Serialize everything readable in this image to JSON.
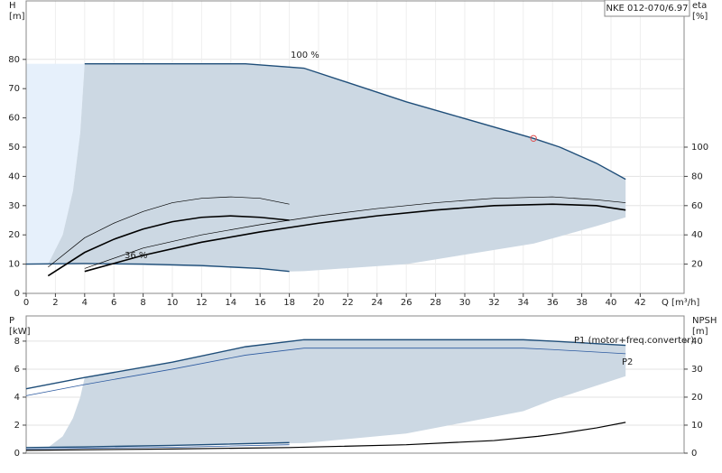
{
  "chart_data": [
    {
      "type": "line",
      "title": "NKE 012-070/6.97",
      "ylabel": "H",
      "yunit": "[m]",
      "y2label": "eta",
      "y2unit": "[%]",
      "xlabel": "Q [m³/h]",
      "xlim": [
        0,
        45
      ],
      "xticks": [
        0,
        2,
        4,
        6,
        8,
        10,
        12,
        14,
        16,
        18,
        20,
        22,
        24,
        26,
        28,
        30,
        32,
        34,
        36,
        38,
        40,
        42
      ],
      "ylim": [
        0,
        100
      ],
      "yticks": [
        0,
        10,
        20,
        30,
        40,
        50,
        60,
        70,
        80
      ],
      "y2lim": [
        0,
        200
      ],
      "y2ticks": [
        20,
        40,
        60,
        80,
        100
      ],
      "grid": true,
      "areas": [
        {
          "color": "#e6f0fb",
          "x": [
            0,
            1.5,
            2.5,
            3.2,
            3.7,
            4
          ],
          "upper": [
            78.5,
            78.5,
            78.5,
            78.5,
            78.5,
            78.5
          ],
          "lower": [
            10,
            10,
            20,
            35,
            55,
            78.5
          ]
        },
        {
          "color": "#ccd8e3",
          "x": [
            1.5,
            2.5,
            3.2,
            3.7,
            4,
            15,
            18,
            19,
            26,
            34.7,
            36.5,
            39,
            41
          ],
          "upper": [
            10,
            20,
            35,
            55,
            78.5,
            78.5,
            77.6,
            77,
            65.5,
            53,
            50,
            44.5,
            39
          ],
          "lower": [
            10,
            10.2,
            10.2,
            10.2,
            10.2,
            8.7,
            7.5,
            7.6,
            10,
            17,
            19.5,
            23,
            26
          ]
        }
      ],
      "series": [
        {
          "name": "100 %",
          "color": "#1f4e79",
          "width": 1.4,
          "x": [
            4,
            15,
            19,
            26,
            34.7,
            36.5,
            39,
            41
          ],
          "values": [
            78.5,
            78.5,
            77,
            65.5,
            53,
            50,
            44.5,
            39
          ]
        },
        {
          "name": "36 %",
          "color": "#1f4e79",
          "width": 1.4,
          "x": [
            0,
            4,
            8,
            12,
            16,
            18
          ],
          "values": [
            10,
            10.2,
            10,
            9.5,
            8.5,
            7.5
          ]
        },
        {
          "color": "#000000",
          "width": 0.7,
          "axis": "y2",
          "x": [
            1.5,
            4,
            6,
            8,
            10,
            12,
            14,
            16,
            18
          ],
          "values": [
            18,
            38,
            48,
            56,
            62,
            65,
            66,
            65,
            61
          ]
        },
        {
          "color": "#000000",
          "width": 1.6,
          "axis": "y2",
          "x": [
            1.5,
            4,
            6,
            8,
            10,
            12,
            14,
            16,
            18
          ],
          "values": [
            12,
            28,
            37,
            44,
            49,
            52,
            53,
            52,
            50
          ]
        },
        {
          "color": "#000000",
          "width": 0.7,
          "axis": "y2",
          "x": [
            4,
            8,
            12,
            16,
            20,
            24,
            28,
            32,
            36,
            39,
            41
          ],
          "values": [
            17,
            31,
            40,
            47,
            53,
            58,
            62,
            65,
            66,
            64,
            62
          ]
        },
        {
          "color": "#000000",
          "width": 1.6,
          "axis": "y2",
          "x": [
            4,
            8,
            12,
            16,
            20,
            24,
            28,
            32,
            36,
            39,
            41
          ],
          "values": [
            15,
            26,
            35,
            42,
            48,
            53,
            57,
            60,
            61,
            60,
            57
          ]
        }
      ],
      "markers": [
        {
          "x": 34.7,
          "y": 53,
          "color": "#e05050"
        }
      ]
    },
    {
      "type": "line",
      "ylabel": "P",
      "yunit": "[kW]",
      "y2label": "NPSH",
      "y2unit": "[m]",
      "xlim": [
        0,
        45
      ],
      "ylim": [
        0,
        9.8
      ],
      "yticks": [
        0,
        2,
        4,
        6,
        8
      ],
      "y2lim": [
        0,
        49
      ],
      "y2ticks": [
        0,
        10,
        20,
        30,
        40
      ],
      "grid": true,
      "areas": [
        {
          "color": "#ccd8e3",
          "x": [
            1.5,
            2.5,
            3.2,
            3.7,
            4,
            10,
            15,
            18,
            19,
            26,
            34,
            36,
            41
          ],
          "upper": [
            0.4,
            1.2,
            2.5,
            4,
            5.4,
            6.5,
            7.6,
            8,
            8.1,
            8.1,
            8.1,
            8,
            7.7
          ],
          "lower": [
            0.4,
            0.45,
            0.45,
            0.45,
            0.45,
            0.55,
            0.65,
            0.7,
            0.72,
            1.4,
            3,
            3.8,
            5.5
          ]
        }
      ],
      "series": [
        {
          "name": "P1 (motor+freq.converter)",
          "color": "#1f4e79",
          "width": 1.4,
          "x": [
            0,
            4,
            10,
            15,
            19,
            26,
            34,
            36,
            41
          ],
          "values": [
            4.6,
            5.4,
            6.5,
            7.6,
            8.1,
            8.1,
            8.1,
            8,
            7.7
          ]
        },
        {
          "name": "P2",
          "color": "#2c5aa0",
          "width": 0.8,
          "x": [
            0,
            4,
            10,
            15,
            19,
            34,
            36,
            41
          ],
          "values": [
            4.1,
            4.9,
            6,
            7,
            7.5,
            7.5,
            7.4,
            7.1
          ]
        },
        {
          "color": "#1f4e79",
          "width": 1.4,
          "x": [
            0,
            4,
            10,
            18
          ],
          "values": [
            0.4,
            0.45,
            0.55,
            0.75
          ]
        },
        {
          "color": "#2c5aa0",
          "width": 0.8,
          "x": [
            0,
            4,
            10,
            18
          ],
          "values": [
            0.3,
            0.35,
            0.42,
            0.6
          ]
        },
        {
          "color": "#000000",
          "width": 1.2,
          "axis": "y2",
          "x": [
            0,
            10,
            18,
            26,
            32,
            35,
            36.5,
            39,
            41
          ],
          "values": [
            1,
            1.5,
            2,
            3,
            4.5,
            6,
            7,
            9,
            11
          ]
        }
      ]
    }
  ]
}
